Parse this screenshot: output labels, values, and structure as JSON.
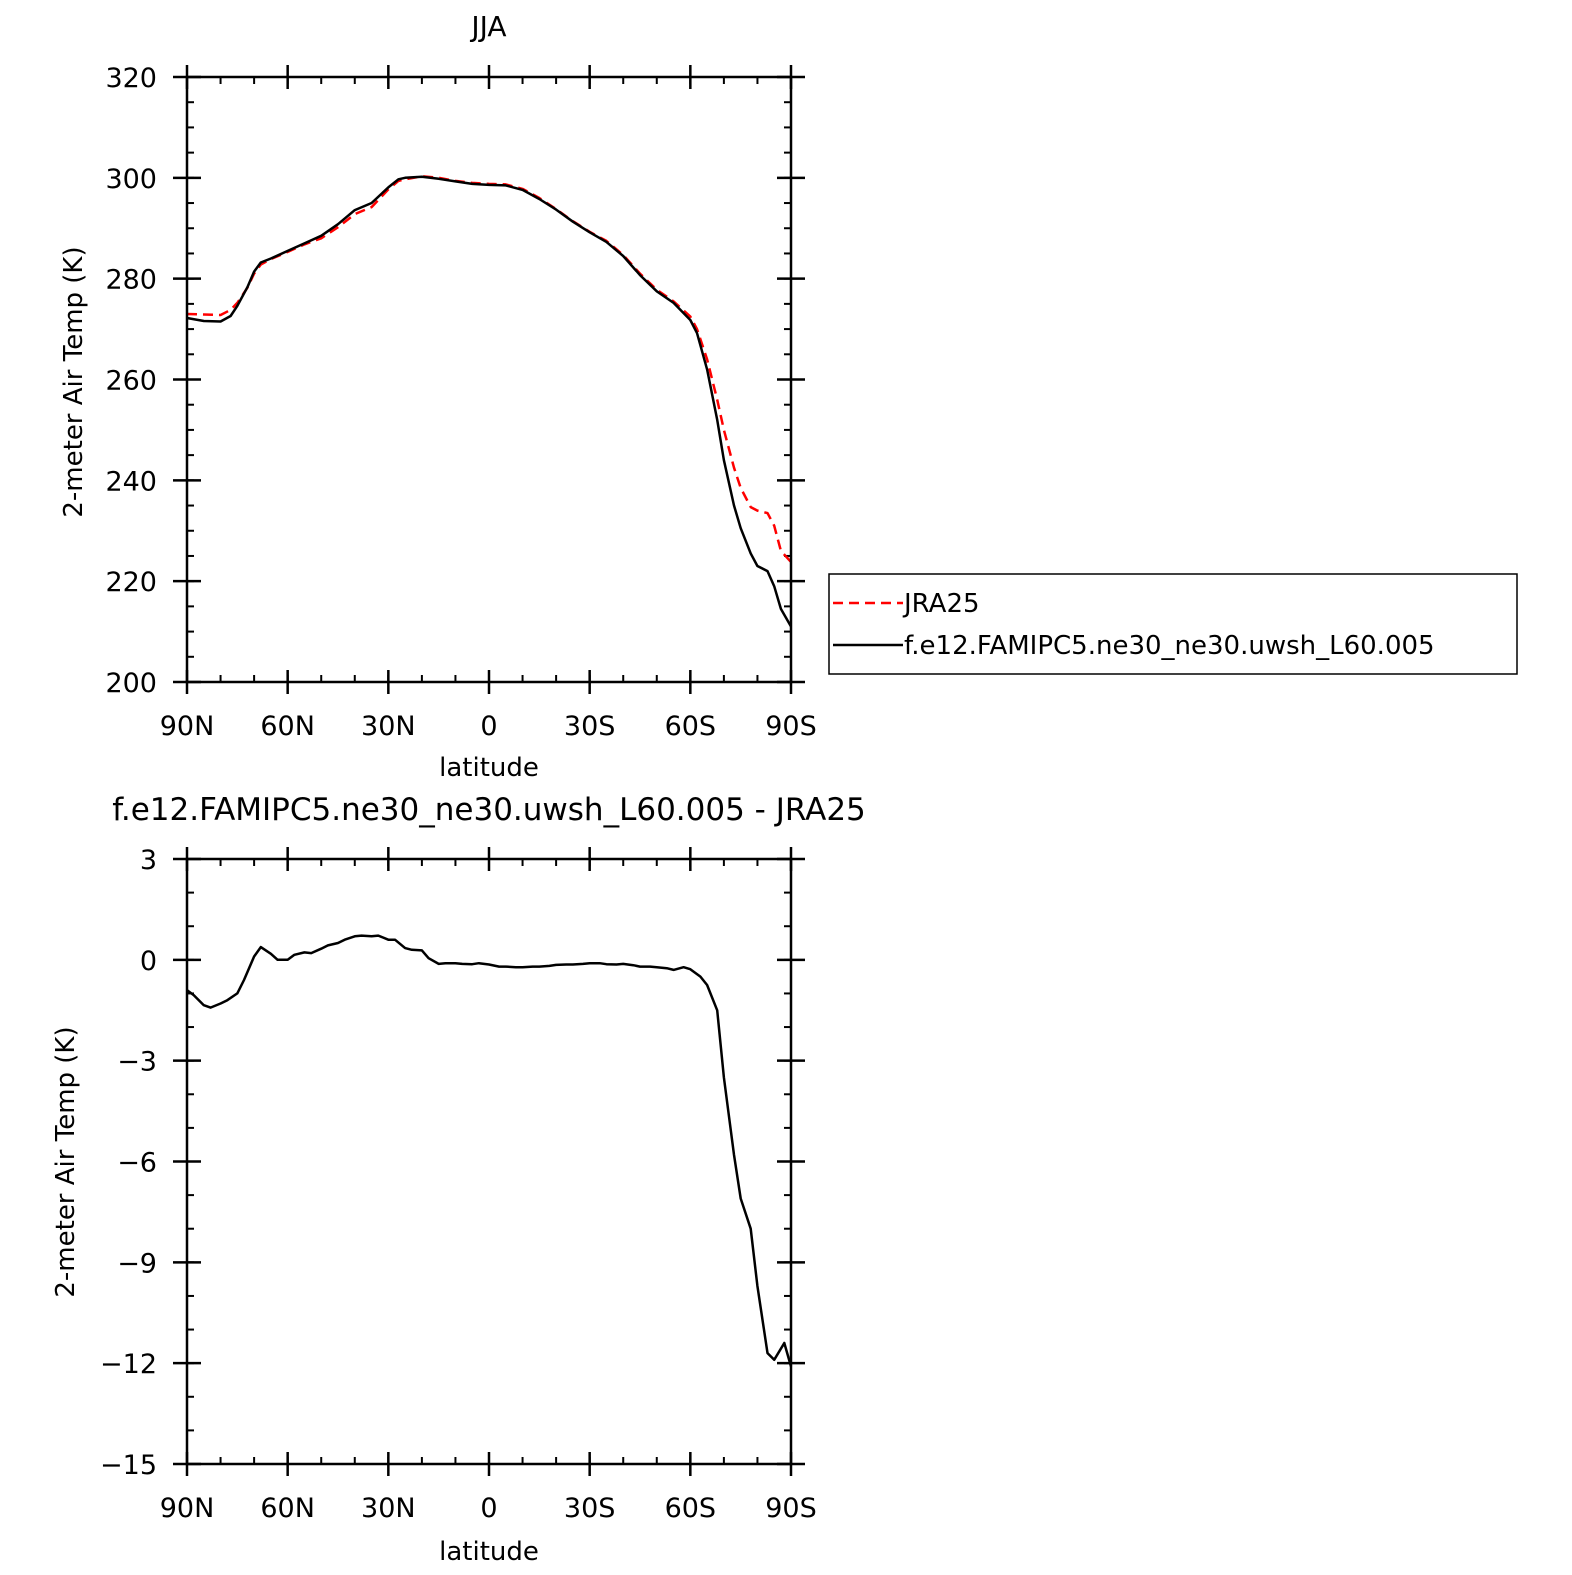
{
  "chart_data": [
    {
      "type": "line",
      "title": "JJA",
      "xlabel": "latitude",
      "ylabel": "2-meter Air Temp (K)",
      "xlim": [
        90,
        -90
      ],
      "ylim": [
        200,
        320
      ],
      "x_ticks": [
        {
          "value": 90,
          "label": "90N"
        },
        {
          "value": 60,
          "label": "60N"
        },
        {
          "value": 30,
          "label": "30N"
        },
        {
          "value": 0,
          "label": "0"
        },
        {
          "value": -30,
          "label": "30S"
        },
        {
          "value": -60,
          "label": "60S"
        },
        {
          "value": -90,
          "label": "90S"
        }
      ],
      "y_ticks": [
        {
          "value": 320,
          "label": "320"
        },
        {
          "value": 300,
          "label": "300"
        },
        {
          "value": 280,
          "label": "280"
        },
        {
          "value": 260,
          "label": "260"
        },
        {
          "value": 240,
          "label": "240"
        },
        {
          "value": 220,
          "label": "220"
        },
        {
          "value": 200,
          "label": "200"
        }
      ],
      "legend": {
        "placement": "outside-right"
      },
      "series": [
        {
          "name": "JRA25",
          "color": "#ff0000",
          "dash": true,
          "x": [
            90,
            85,
            80,
            77,
            75,
            72,
            70,
            68,
            65,
            60,
            55,
            50,
            45,
            40,
            35,
            30,
            27,
            25,
            20,
            15,
            10,
            5,
            0,
            -5,
            -10,
            -15,
            -20,
            -25,
            -30,
            -35,
            -40,
            -45,
            -50,
            -55,
            -60,
            -62,
            -65,
            -68,
            -70,
            -73,
            -75,
            -78,
            -80,
            -83,
            -85,
            -87,
            -90
          ],
          "y": [
            273.0,
            272.9,
            272.8,
            273.8,
            275.2,
            278.2,
            281.0,
            282.8,
            283.9,
            285.3,
            286.8,
            288.0,
            290.2,
            292.8,
            294.2,
            297.7,
            299.4,
            299.7,
            300.3,
            300.0,
            299.4,
            299.0,
            298.8,
            298.7,
            297.8,
            296.0,
            293.8,
            291.4,
            289.3,
            287.5,
            284.7,
            281.0,
            277.8,
            275.5,
            272.5,
            270.0,
            264.0,
            256.0,
            250.0,
            242.5,
            238.5,
            234.7,
            234.0,
            233.5,
            231.0,
            226.0,
            223.8
          ]
        },
        {
          "name": "f.e12.FAMIPC5.ne30_ne30.uwsh_L60.005",
          "color": "#000000",
          "dash": false,
          "x": [
            90,
            85,
            80,
            77,
            75,
            72,
            70,
            68,
            65,
            60,
            55,
            50,
            45,
            40,
            35,
            30,
            27,
            25,
            20,
            15,
            10,
            5,
            0,
            -5,
            -10,
            -15,
            -20,
            -25,
            -30,
            -35,
            -40,
            -45,
            -50,
            -55,
            -60,
            -62,
            -65,
            -68,
            -70,
            -73,
            -75,
            -78,
            -80,
            -83,
            -85,
            -87,
            -90
          ],
          "y": [
            272.2,
            271.6,
            271.5,
            272.6,
            274.6,
            278.3,
            281.4,
            283.2,
            284.0,
            285.5,
            287.0,
            288.5,
            290.8,
            293.6,
            295.0,
            298.1,
            299.7,
            300.0,
            300.2,
            299.8,
            299.3,
            298.8,
            298.6,
            298.5,
            297.6,
            295.8,
            293.7,
            291.3,
            289.2,
            287.3,
            284.5,
            280.7,
            277.5,
            275.2,
            271.8,
            269.2,
            262.0,
            252.0,
            244.0,
            235.0,
            230.5,
            225.5,
            223.0,
            222.0,
            219.0,
            214.5,
            211.0
          ]
        }
      ]
    },
    {
      "type": "line",
      "title": "f.e12.FAMIPC5.ne30_ne30.uwsh_L60.005 - JRA25",
      "xlabel": "latitude",
      "ylabel": "2-meter Air Temp (K)",
      "xlim": [
        90,
        -90
      ],
      "ylim": [
        -15,
        3
      ],
      "x_ticks": [
        {
          "value": 90,
          "label": "90N"
        },
        {
          "value": 60,
          "label": "60N"
        },
        {
          "value": 30,
          "label": "30N"
        },
        {
          "value": 0,
          "label": "0"
        },
        {
          "value": -30,
          "label": "30S"
        },
        {
          "value": -60,
          "label": "60S"
        },
        {
          "value": -90,
          "label": "90S"
        }
      ],
      "y_ticks": [
        {
          "value": 3,
          "label": "3"
        },
        {
          "value": 0,
          "label": "0"
        },
        {
          "value": -3,
          "label": "-3"
        },
        {
          "value": -6,
          "label": "-6"
        },
        {
          "value": -9,
          "label": "-9"
        },
        {
          "value": -12,
          "label": "-12"
        },
        {
          "value": -15,
          "label": "-15"
        }
      ],
      "series": [
        {
          "name": "",
          "color": "#000000",
          "dash": false,
          "x": [
            90,
            88,
            85,
            83,
            80,
            78,
            75,
            73,
            70,
            68,
            65,
            63,
            60,
            58,
            55,
            53,
            50,
            48,
            45,
            43,
            40,
            38,
            35,
            33,
            30,
            28,
            25,
            23,
            20,
            18,
            15,
            13,
            10,
            8,
            5,
            3,
            0,
            -3,
            -5,
            -8,
            -10,
            -13,
            -15,
            -18,
            -20,
            -23,
            -25,
            -28,
            -30,
            -33,
            -35,
            -38,
            -40,
            -43,
            -45,
            -48,
            -50,
            -53,
            -55,
            -58,
            -60,
            -63,
            -65,
            -68,
            -70,
            -73,
            -75,
            -78,
            -80,
            -83,
            -85,
            -88,
            -90
          ],
          "y": [
            -0.9,
            -1.05,
            -1.35,
            -1.42,
            -1.3,
            -1.2,
            -1.0,
            -0.6,
            0.1,
            0.38,
            0.18,
            0.0,
            0.0,
            0.15,
            0.22,
            0.2,
            0.33,
            0.43,
            0.5,
            0.6,
            0.7,
            0.72,
            0.7,
            0.72,
            0.6,
            0.6,
            0.35,
            0.3,
            0.28,
            0.05,
            -0.12,
            -0.1,
            -0.1,
            -0.12,
            -0.13,
            -0.1,
            -0.14,
            -0.2,
            -0.2,
            -0.22,
            -0.22,
            -0.2,
            -0.2,
            -0.18,
            -0.15,
            -0.14,
            -0.14,
            -0.12,
            -0.1,
            -0.1,
            -0.13,
            -0.14,
            -0.12,
            -0.16,
            -0.2,
            -0.2,
            -0.22,
            -0.25,
            -0.3,
            -0.22,
            -0.28,
            -0.5,
            -0.75,
            -1.5,
            -3.5,
            -5.8,
            -7.1,
            -8.0,
            -9.7,
            -11.7,
            -11.9,
            -11.4,
            -12.1
          ]
        }
      ]
    }
  ]
}
